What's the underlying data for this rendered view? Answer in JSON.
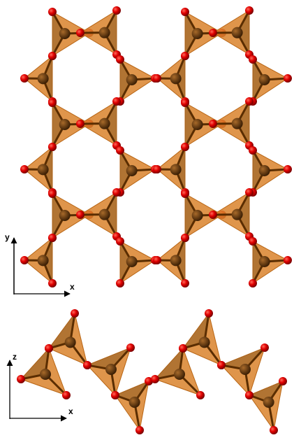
{
  "axes": [
    {
      "vertical": "y",
      "horizontal": "x"
    },
    {
      "vertical": "z",
      "horizontal": "x"
    }
  ]
}
